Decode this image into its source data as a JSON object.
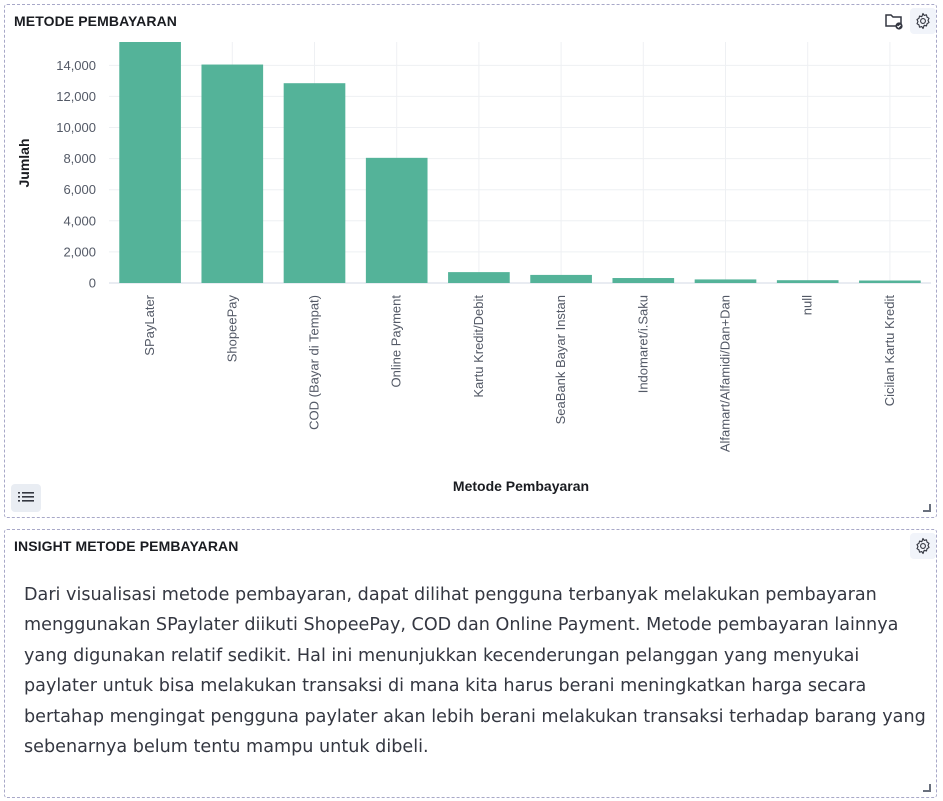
{
  "chart_panel": {
    "title": "METODE PEMBAYARAN"
  },
  "insight_panel": {
    "title": "INSIGHT METODE PEMBAYARAN",
    "text": "Dari visualisasi metode pembayaran, dapat dilihat pengguna terbanyak melakukan pembayaran menggunakan SPaylater diikuti ShopeePay, COD dan Online Payment. Metode pembayaran lainnya yang digunakan relatif sedikit. Hal ini menunjukkan kecenderungan pelanggan yang menyukai paylater untuk bisa melakukan transaksi di mana kita harus berani meningkatkan harga secara bertahap mengingat pengguna paylater akan lebih berani melakukan transaksi terhadap barang yang sebenarnya belum tentu mampu untuk dibeli."
  },
  "colors": {
    "bar": "#54b399",
    "gear_bg": "#f1f4fa"
  },
  "chart_data": {
    "type": "bar",
    "xlabel": "Metode Pembayaran",
    "ylabel": "Jumlah",
    "categories": [
      "SPayLater",
      "ShopeePay",
      "COD (Bayar di Tempat)",
      "Online Payment",
      "Kartu Kredit/Debit",
      "SeaBank Bayar Instan",
      "Indomaret/i.Saku",
      "Alfamart/Alfamidi/Dan+Dan",
      "null",
      "Cicilan Kartu Kredit"
    ],
    "values": [
      15500,
      14050,
      12850,
      8050,
      700,
      520,
      320,
      230,
      180,
      160
    ],
    "yticks": [
      "0",
      "2,000",
      "4,000",
      "6,000",
      "8,000",
      "10,000",
      "12,000",
      "14,000"
    ],
    "ylim": [
      0,
      15500
    ],
    "grid": true,
    "legend": "collapsed"
  }
}
